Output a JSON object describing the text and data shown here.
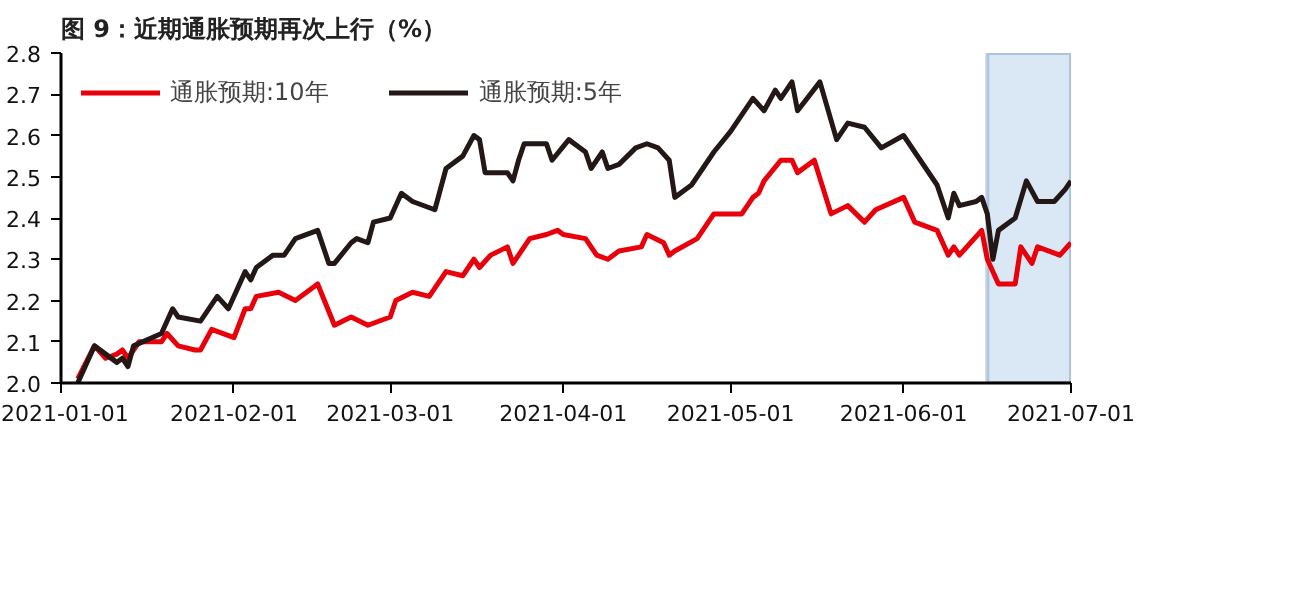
{
  "chart_data": {
    "type": "line",
    "title": "图 9：近期通胀预期再次上行（%）",
    "xlim": [
      "2021-01-01",
      "2021-07-01"
    ],
    "xticks": [
      "2021-01-01",
      "2021-02-01",
      "2021-03-01",
      "2021-04-01",
      "2021-05-01",
      "2021-06-01",
      "2021-07-01"
    ],
    "ylim": [
      2.0,
      2.8
    ],
    "yticks": [
      {
        "value": 2.0,
        "label": "2.0"
      },
      {
        "value": 2.1,
        "label": "2.1"
      },
      {
        "value": 2.2,
        "label": "2.2"
      },
      {
        "value": 2.3,
        "label": "2.3"
      },
      {
        "value": 2.4,
        "label": "2.4"
      },
      {
        "value": 2.5,
        "label": "2.5"
      },
      {
        "value": 2.6,
        "label": "2.6"
      },
      {
        "value": 2.7,
        "label": "2.7"
      },
      {
        "value": 2.8,
        "label": "2.8"
      }
    ],
    "grid": false,
    "legend": "top left",
    "line_style": "solid",
    "bands": [
      {
        "axis": "x",
        "from": "2021-06-16",
        "to": "2021-07-01",
        "color": "#dae8f6"
      }
    ],
    "series": [
      {
        "name": "通胀预期:10年",
        "color": "#e8000b",
        "x": [
          "2021-01-04",
          "2021-01-07",
          "2021-01-09",
          "2021-01-11",
          "2021-01-12",
          "2021-01-13",
          "2021-01-15",
          "2021-01-19",
          "2021-01-20",
          "2021-01-22",
          "2021-01-25",
          "2021-01-26",
          "2021-01-28",
          "2021-02-01",
          "2021-02-03",
          "2021-02-04",
          "2021-02-05",
          "2021-02-09",
          "2021-02-12",
          "2021-02-16",
          "2021-02-19",
          "2021-02-22",
          "2021-02-25",
          "2021-03-01",
          "2021-03-02",
          "2021-03-05",
          "2021-03-08",
          "2021-03-11",
          "2021-03-14",
          "2021-03-16",
          "2021-03-17",
          "2021-03-19",
          "2021-03-22",
          "2021-03-23",
          "2021-03-26",
          "2021-03-29",
          "2021-03-31",
          "2021-04-01",
          "2021-04-05",
          "2021-04-07",
          "2021-04-09",
          "2021-04-11",
          "2021-04-15",
          "2021-04-16",
          "2021-04-19",
          "2021-04-20",
          "2021-04-21",
          "2021-04-25",
          "2021-04-28",
          "2021-05-03",
          "2021-05-05",
          "2021-05-06",
          "2021-05-07",
          "2021-05-10",
          "2021-05-11",
          "2021-05-12",
          "2021-05-13",
          "2021-05-16",
          "2021-05-19",
          "2021-05-22",
          "2021-05-25",
          "2021-05-27",
          "2021-06-01",
          "2021-06-03",
          "2021-06-07",
          "2021-06-09",
          "2021-06-10",
          "2021-06-11",
          "2021-06-15",
          "2021-06-16",
          "2021-06-18",
          "2021-06-21",
          "2021-06-22",
          "2021-06-24",
          "2021-06-25",
          "2021-06-29",
          "2021-07-01"
        ],
        "values": [
          2.01,
          2.09,
          2.06,
          2.07,
          2.08,
          2.06,
          2.1,
          2.1,
          2.12,
          2.09,
          2.08,
          2.08,
          2.13,
          2.11,
          2.18,
          2.18,
          2.21,
          2.22,
          2.2,
          2.24,
          2.14,
          2.16,
          2.14,
          2.16,
          2.2,
          2.22,
          2.21,
          2.27,
          2.26,
          2.3,
          2.28,
          2.31,
          2.33,
          2.29,
          2.35,
          2.36,
          2.37,
          2.36,
          2.35,
          2.31,
          2.3,
          2.32,
          2.33,
          2.36,
          2.34,
          2.31,
          2.32,
          2.35,
          2.41,
          2.41,
          2.45,
          2.46,
          2.49,
          2.54,
          2.54,
          2.54,
          2.51,
          2.54,
          2.41,
          2.43,
          2.39,
          2.42,
          2.45,
          2.39,
          2.37,
          2.31,
          2.33,
          2.31,
          2.37,
          2.3,
          2.24,
          2.24,
          2.33,
          2.29,
          2.33,
          2.31,
          2.34
        ]
      },
      {
        "name": "通胀预期:5年",
        "color": "#231815",
        "x": [
          "2021-01-04",
          "2021-01-07",
          "2021-01-11",
          "2021-01-12",
          "2021-01-13",
          "2021-01-14",
          "2021-01-19",
          "2021-01-21",
          "2021-01-22",
          "2021-01-26",
          "2021-01-29",
          "2021-01-31",
          "2021-02-03",
          "2021-02-04",
          "2021-02-05",
          "2021-02-08",
          "2021-02-10",
          "2021-02-12",
          "2021-02-16",
          "2021-02-18",
          "2021-02-19",
          "2021-02-22",
          "2021-02-23",
          "2021-02-25",
          "2021-02-26",
          "2021-03-01",
          "2021-03-03",
          "2021-03-05",
          "2021-03-09",
          "2021-03-11",
          "2021-03-14",
          "2021-03-16",
          "2021-03-17",
          "2021-03-18",
          "2021-03-22",
          "2021-03-23",
          "2021-03-24",
          "2021-03-25",
          "2021-03-29",
          "2021-03-30",
          "2021-04-02",
          "2021-04-05",
          "2021-04-06",
          "2021-04-08",
          "2021-04-09",
          "2021-04-11",
          "2021-04-14",
          "2021-04-16",
          "2021-04-18",
          "2021-04-20",
          "2021-04-21",
          "2021-04-24",
          "2021-04-28",
          "2021-05-01",
          "2021-05-05",
          "2021-05-07",
          "2021-05-09",
          "2021-05-10",
          "2021-05-12",
          "2021-05-13",
          "2021-05-17",
          "2021-05-20",
          "2021-05-22",
          "2021-05-25",
          "2021-05-28",
          "2021-06-01",
          "2021-06-04",
          "2021-06-07",
          "2021-06-09",
          "2021-06-10",
          "2021-06-11",
          "2021-06-14",
          "2021-06-15",
          "2021-06-16",
          "2021-06-17",
          "2021-06-18",
          "2021-06-21",
          "2021-06-23",
          "2021-06-25",
          "2021-06-28",
          "2021-06-30",
          "2021-07-01"
        ],
        "values": [
          2.0,
          2.09,
          2.05,
          2.06,
          2.04,
          2.09,
          2.12,
          2.18,
          2.16,
          2.15,
          2.21,
          2.18,
          2.27,
          2.25,
          2.28,
          2.31,
          2.31,
          2.35,
          2.37,
          2.29,
          2.29,
          2.34,
          2.35,
          2.34,
          2.39,
          2.4,
          2.46,
          2.44,
          2.42,
          2.52,
          2.55,
          2.6,
          2.59,
          2.51,
          2.51,
          2.49,
          2.54,
          2.58,
          2.58,
          2.54,
          2.59,
          2.56,
          2.52,
          2.56,
          2.52,
          2.53,
          2.57,
          2.58,
          2.57,
          2.54,
          2.45,
          2.48,
          2.56,
          2.61,
          2.69,
          2.66,
          2.71,
          2.69,
          2.73,
          2.66,
          2.73,
          2.59,
          2.63,
          2.62,
          2.57,
          2.6,
          2.54,
          2.48,
          2.4,
          2.46,
          2.43,
          2.44,
          2.45,
          2.41,
          2.3,
          2.37,
          2.4,
          2.49,
          2.44,
          2.44,
          2.47,
          2.49
        ]
      }
    ]
  }
}
